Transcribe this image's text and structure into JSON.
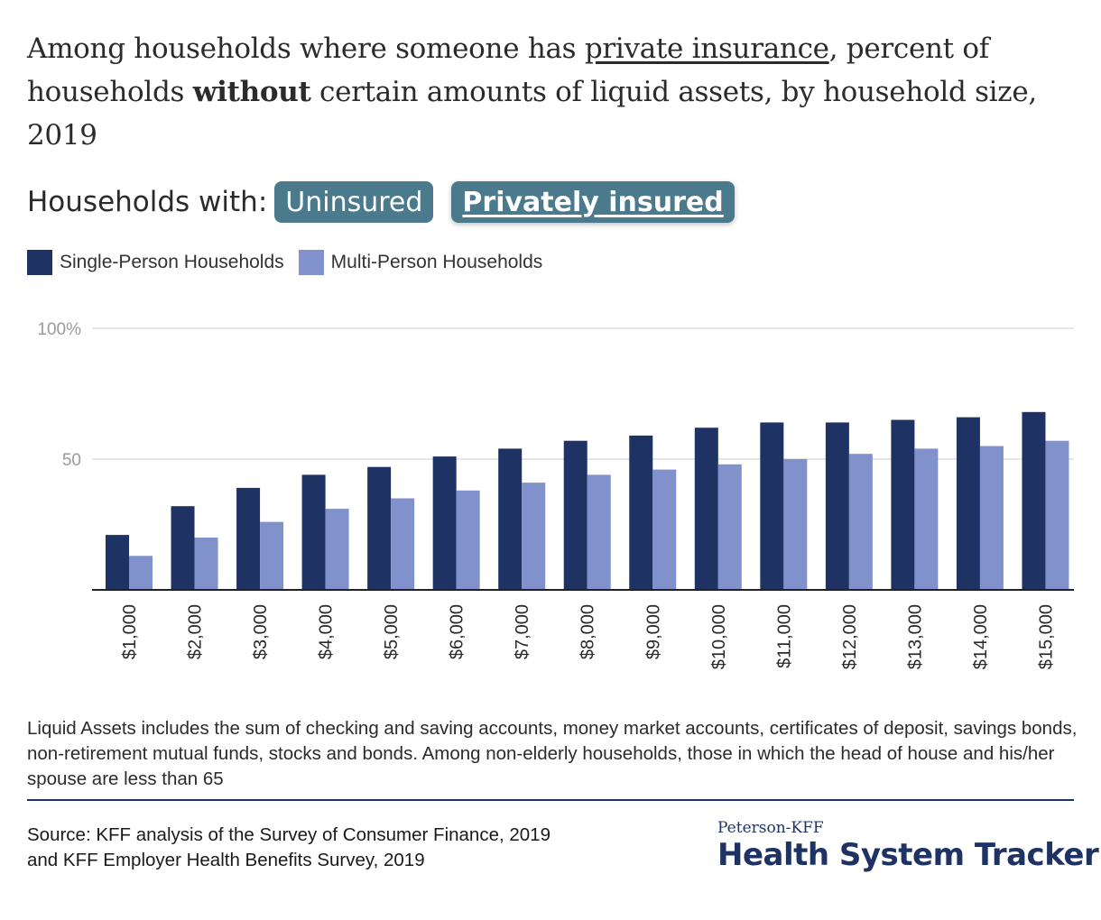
{
  "title": {
    "part1": "Among households where someone has ",
    "link": "private insurance",
    "part2": ", percent of households ",
    "bold": "without",
    "part3": " certain amounts of liquid assets, by household size, 2019"
  },
  "toggle": {
    "label": "Households with:",
    "options": [
      "Uninsured",
      "Privately insured"
    ],
    "active": "Privately insured"
  },
  "colors": {
    "single": "#1f3264",
    "multi": "#8191cc",
    "toggle_bg": "#4a7a8c",
    "brand": "#1f3264"
  },
  "chart_data": {
    "type": "bar",
    "categories": [
      "$1,000",
      "$2,000",
      "$3,000",
      "$4,000",
      "$5,000",
      "$6,000",
      "$7,000",
      "$8,000",
      "$9,000",
      "$10,000",
      "$11,000",
      "$12,000",
      "$13,000",
      "$14,000",
      "$15,000"
    ],
    "series": [
      {
        "name": "Single-Person Households",
        "values": [
          21,
          32,
          39,
          44,
          47,
          51,
          54,
          57,
          59,
          62,
          64,
          64,
          65,
          66,
          68
        ]
      },
      {
        "name": "Multi-Person Households",
        "values": [
          13,
          20,
          26,
          31,
          35,
          38,
          41,
          44,
          46,
          48,
          50,
          52,
          54,
          55,
          57
        ]
      }
    ],
    "yticks": [
      "",
      "50",
      "100%"
    ],
    "ylim": [
      0,
      100
    ],
    "legend_position": "top-left",
    "grid": true
  },
  "note": "Liquid Assets includes the sum of checking and saving accounts, money market accounts, certificates of deposit, savings bonds, non-retirement mutual funds, stocks and bonds. Among non-elderly households, those in which the head of house and his/her spouse are less than 65",
  "source": {
    "line1": "Source: KFF analysis of the Survey of Consumer Finance, 2019",
    "line2": "and KFF Employer Health Benefits Survey, 2019"
  },
  "brand": {
    "small": "Peterson-KFF",
    "big": "Health System Tracker"
  }
}
